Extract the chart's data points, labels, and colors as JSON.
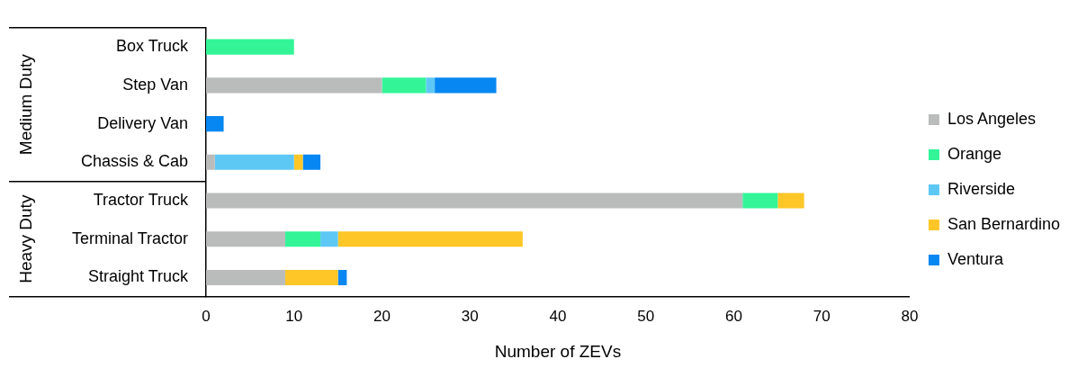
{
  "chart_data": {
    "type": "bar",
    "orientation": "horizontal",
    "stacked": true,
    "xlabel": "Number of ZEVs",
    "categories": [
      "Box Truck",
      "Step Van",
      "Delivery Van",
      "Chassis & Cab",
      "Tractor Truck",
      "Terminal Tractor",
      "Straight Truck"
    ],
    "series": [
      {
        "name": "Los Angeles",
        "color": "#babcbc",
        "values": [
          0,
          20,
          0,
          1,
          61,
          9,
          9
        ]
      },
      {
        "name": "Orange",
        "color": "#33f598",
        "values": [
          10,
          5,
          0,
          0,
          4,
          4,
          0
        ]
      },
      {
        "name": "Riverside",
        "color": "#5ec8f5",
        "values": [
          0,
          1,
          0,
          9,
          0,
          2,
          0
        ]
      },
      {
        "name": "San Bernardino",
        "color": "#ffc627",
        "values": [
          0,
          0,
          0,
          1,
          3,
          21,
          6
        ]
      },
      {
        "name": "Ventura",
        "color": "#0787f1",
        "values": [
          0,
          7,
          2,
          2,
          0,
          0,
          1
        ]
      }
    ],
    "xlim": [
      0,
      80
    ],
    "xticks": [
      0,
      10,
      20,
      30,
      40,
      50,
      60,
      70,
      80
    ],
    "grid": false,
    "legend": "right",
    "annotations": [
      "Medium Duty",
      "Heavy Duty"
    ]
  }
}
